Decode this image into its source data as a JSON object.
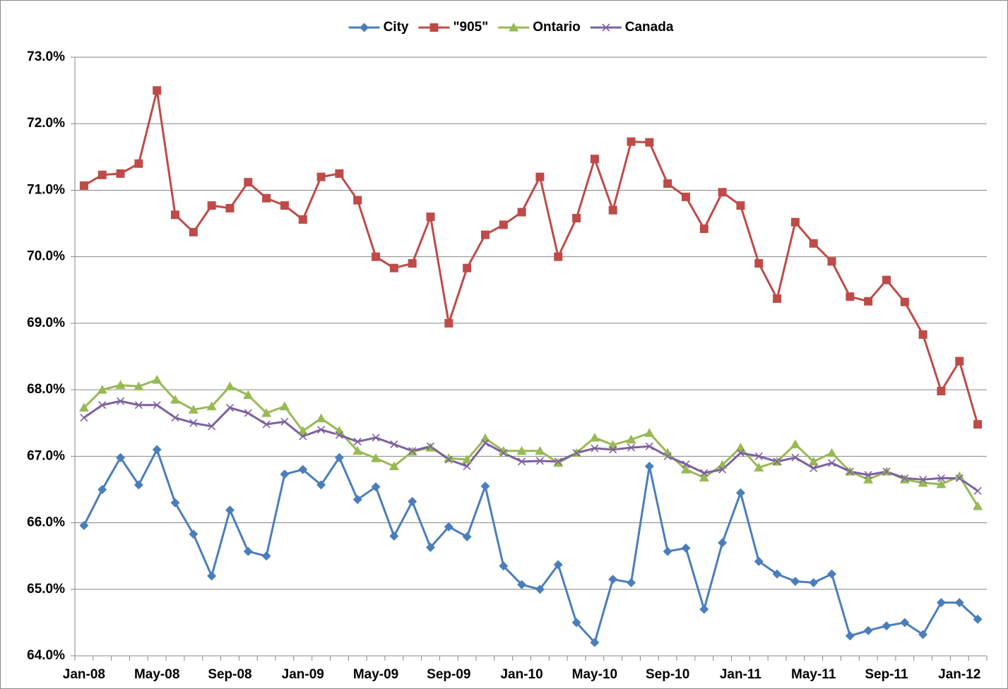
{
  "chart_data": {
    "type": "line",
    "categories": [
      "Jan-08",
      null,
      null,
      null,
      "May-08",
      null,
      null,
      null,
      "Sep-08",
      null,
      null,
      null,
      "Jan-09",
      null,
      null,
      null,
      "May-09",
      null,
      null,
      null,
      "Sep-09",
      null,
      null,
      null,
      "Jan-10",
      null,
      null,
      null,
      "May-10",
      null,
      null,
      null,
      "Sep-10",
      null,
      null,
      null,
      "Jan-11",
      null,
      null,
      null,
      "May-11",
      null,
      null,
      null,
      "Sep-11",
      null,
      null,
      null,
      "Jan-12",
      null
    ],
    "ylim": [
      64,
      73
    ],
    "yticks": [
      {
        "value": 64,
        "label": "64.0%"
      },
      {
        "value": 65,
        "label": "65.0%"
      },
      {
        "value": 66,
        "label": "66.0%"
      },
      {
        "value": 67,
        "label": "67.0%"
      },
      {
        "value": 68,
        "label": "68.0%"
      },
      {
        "value": 69,
        "label": "69.0%"
      },
      {
        "value": 70,
        "label": "70.0%"
      },
      {
        "value": 71,
        "label": "71.0%"
      },
      {
        "value": 72,
        "label": "72.0%"
      },
      {
        "value": 73,
        "label": "73.0%"
      }
    ],
    "grid": true,
    "legend": "top",
    "series": [
      {
        "name": "City",
        "color": "#4a7ebb",
        "marker": "diamond",
        "values": [
          65.96,
          66.5,
          66.98,
          66.57,
          67.1,
          66.3,
          65.83,
          65.2,
          66.19,
          65.57,
          65.5,
          66.73,
          66.8,
          66.57,
          66.98,
          66.35,
          66.54,
          65.8,
          66.32,
          65.63,
          65.94,
          65.79,
          66.55,
          65.35,
          65.07,
          65.0,
          65.37,
          64.5,
          64.2,
          65.15,
          65.1,
          66.85,
          65.57,
          65.62,
          64.7,
          65.7,
          66.45,
          65.42,
          65.23,
          65.12,
          65.1,
          65.23,
          64.3,
          64.38,
          64.45,
          64.5,
          64.32,
          64.8,
          64.8,
          64.55
        ]
      },
      {
        "name": "\"905\"",
        "color": "#be4b48",
        "marker": "square",
        "values": [
          71.07,
          71.23,
          71.25,
          71.4,
          72.5,
          70.63,
          70.37,
          70.77,
          70.73,
          71.12,
          70.88,
          70.77,
          70.56,
          71.2,
          71.25,
          70.85,
          70.0,
          69.83,
          69.9,
          70.6,
          69.0,
          69.83,
          70.33,
          70.48,
          70.67,
          71.2,
          70.0,
          70.58,
          71.47,
          70.7,
          71.73,
          71.72,
          71.1,
          70.9,
          70.42,
          70.97,
          70.77,
          69.9,
          69.37,
          70.52,
          70.2,
          69.93,
          69.4,
          69.33,
          69.65,
          69.32,
          68.83,
          67.98,
          68.43,
          67.48
        ]
      },
      {
        "name": "Ontario",
        "color": "#98b954",
        "marker": "triangle",
        "values": [
          67.73,
          68.0,
          68.07,
          68.05,
          68.15,
          67.85,
          67.7,
          67.75,
          68.05,
          67.92,
          67.65,
          67.75,
          67.38,
          67.57,
          67.38,
          67.08,
          66.97,
          66.85,
          67.07,
          67.13,
          66.97,
          66.95,
          67.27,
          67.08,
          67.08,
          67.08,
          66.9,
          67.05,
          67.28,
          67.17,
          67.25,
          67.35,
          67.05,
          66.8,
          66.68,
          66.87,
          67.13,
          66.83,
          66.92,
          67.18,
          66.92,
          67.05,
          66.77,
          66.65,
          66.77,
          66.65,
          66.6,
          66.58,
          66.7,
          66.25
        ]
      },
      {
        "name": "Canada",
        "color": "#7d60a0",
        "marker": "x",
        "values": [
          67.58,
          67.77,
          67.83,
          67.77,
          67.77,
          67.58,
          67.5,
          67.45,
          67.73,
          67.65,
          67.48,
          67.52,
          67.3,
          67.4,
          67.32,
          67.22,
          67.28,
          67.18,
          67.08,
          67.15,
          66.95,
          66.85,
          67.2,
          67.05,
          66.92,
          66.93,
          66.92,
          67.05,
          67.12,
          67.1,
          67.13,
          67.15,
          67.0,
          66.88,
          66.75,
          66.8,
          67.05,
          67.0,
          66.92,
          66.98,
          66.82,
          66.9,
          66.77,
          66.72,
          66.77,
          66.67,
          66.65,
          66.67,
          66.67,
          66.48
        ]
      }
    ]
  }
}
